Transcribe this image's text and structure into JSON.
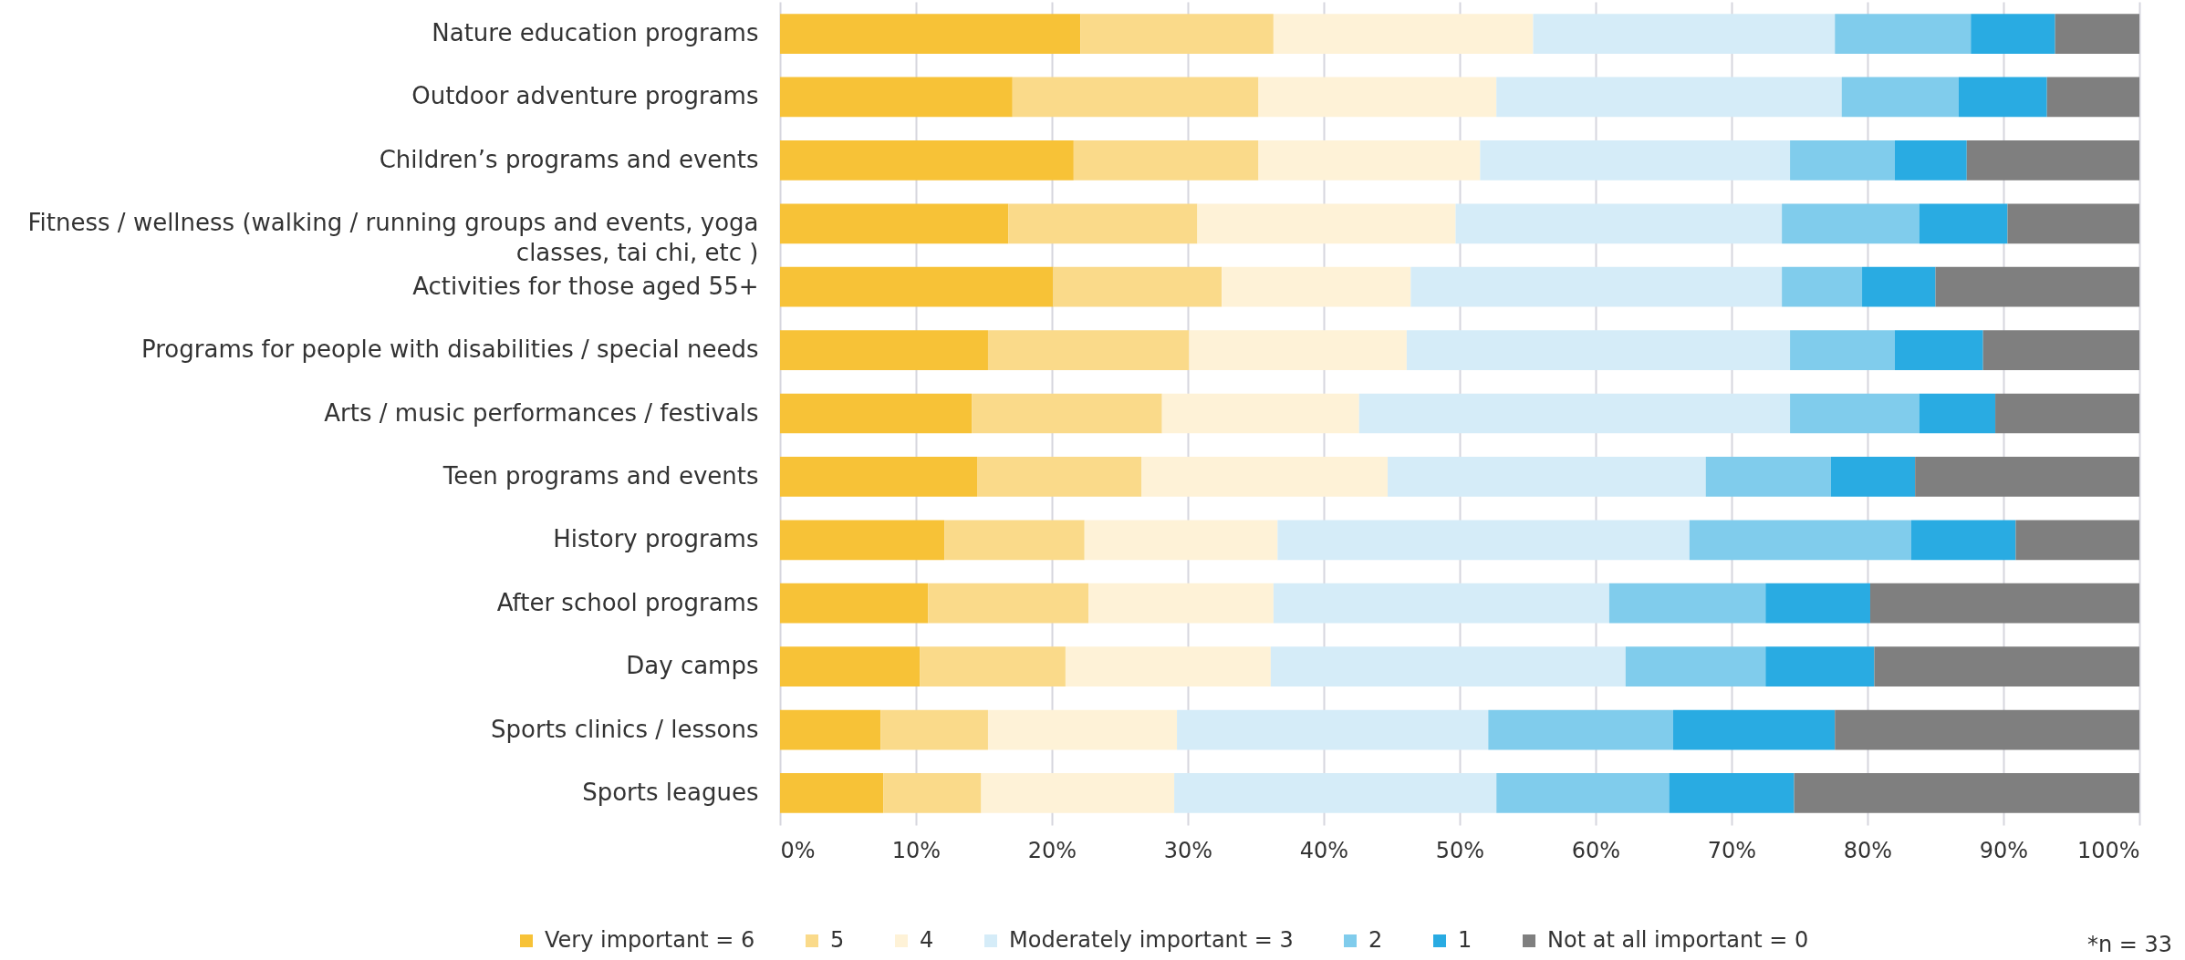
{
  "chart_data": {
    "type": "bar",
    "orientation": "horizontal",
    "stacked": true,
    "categories": [
      "Nature education programs",
      "Outdoor adventure programs",
      "Children’s programs and events",
      "Fitness / wellness (walking / running groups and events, yoga classes, tai chi, etc )",
      "Activities for those aged 55+",
      "Programs for people with disabilities / special needs",
      "Arts / music performances / festivals",
      "Teen programs and events",
      "History programs",
      "After school programs",
      "Day camps",
      "Sports clinics / lessons",
      "Sports leagues"
    ],
    "series": [
      {
        "name": "Very important = 6",
        "color": "#f7c237",
        "values": [
          22.1,
          17.1,
          21.6,
          16.8,
          20.1,
          15.3,
          14.1,
          14.5,
          12.1,
          10.9,
          10.3,
          7.4,
          7.6
        ]
      },
      {
        "name": "5",
        "color": "#fada8a",
        "values": [
          14.2,
          18.1,
          13.6,
          13.9,
          12.4,
          14.8,
          14.0,
          12.1,
          10.3,
          11.8,
          10.7,
          7.9,
          7.2
        ]
      },
      {
        "name": "4",
        "color": "#fef2d7",
        "values": [
          19.1,
          17.5,
          16.3,
          19.0,
          13.9,
          16.0,
          14.5,
          18.1,
          14.2,
          13.6,
          15.1,
          13.9,
          14.2
        ]
      },
      {
        "name": "Moderately important = 3",
        "color": "#d5ecf8",
        "values": [
          22.2,
          25.4,
          22.8,
          24.0,
          27.3,
          28.2,
          31.7,
          23.4,
          30.3,
          24.7,
          26.1,
          22.9,
          23.7
        ]
      },
      {
        "name": "2",
        "color": "#80ccec",
        "values": [
          10.0,
          8.6,
          7.7,
          10.1,
          5.9,
          7.7,
          9.5,
          9.2,
          16.3,
          11.5,
          10.3,
          13.6,
          12.7
        ]
      },
      {
        "name": "1",
        "color": "#29abe2",
        "values": [
          6.2,
          6.5,
          5.3,
          6.5,
          5.4,
          6.5,
          5.6,
          6.2,
          7.7,
          7.7,
          8.0,
          11.9,
          9.2
        ]
      },
      {
        "name": "Not at all important = 0",
        "color": "#7f7f7f",
        "values": [
          6.2,
          6.8,
          12.7,
          9.7,
          15.0,
          11.5,
          10.6,
          16.5,
          9.1,
          19.8,
          19.5,
          22.4,
          25.4
        ]
      }
    ],
    "xlim": [
      0,
      100
    ],
    "xticks": [
      {
        "value": 0,
        "label": "0%"
      },
      {
        "value": 10,
        "label": "10%"
      },
      {
        "value": 20,
        "label": "20%"
      },
      {
        "value": 30,
        "label": "30%"
      },
      {
        "value": 40,
        "label": "40%"
      },
      {
        "value": 50,
        "label": "50%"
      },
      {
        "value": 60,
        "label": "60%"
      },
      {
        "value": 70,
        "label": "70%"
      },
      {
        "value": 80,
        "label": "80%"
      },
      {
        "value": 90,
        "label": "90%"
      },
      {
        "value": 100,
        "label": "100%"
      }
    ],
    "grid": "x",
    "legend": "bottom",
    "annotations": [
      "*n = 33"
    ]
  }
}
